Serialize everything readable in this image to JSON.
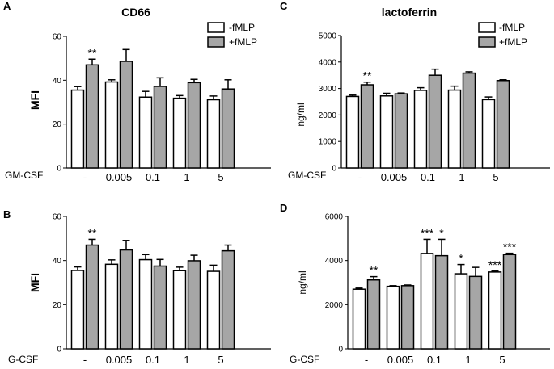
{
  "colors": {
    "neg": "#ffffff",
    "pos": "#a6a6a6",
    "stroke": "#000000"
  },
  "chart_data": [
    {
      "panel": "A",
      "type": "bar",
      "title": "CD66",
      "ylabel": "MFI",
      "factor_label": "GM-CSF",
      "categories": [
        "-",
        "0.005",
        "0.1",
        "1",
        "5"
      ],
      "ylim": [
        0,
        60
      ],
      "yticks": [
        0,
        20,
        40,
        60
      ],
      "legend": [
        "-fMLP",
        "+fMLP"
      ],
      "series": [
        {
          "name": "-fMLP",
          "values": [
            35.5,
            39.2,
            32.3,
            31.8,
            31.1
          ],
          "errors": [
            1.6,
            1.0,
            2.6,
            1.2,
            1.7
          ],
          "stars": [
            "",
            "",
            "",
            "",
            ""
          ]
        },
        {
          "name": "+fMLP",
          "values": [
            47.0,
            48.6,
            37.2,
            38.9,
            36.0
          ],
          "errors": [
            2.6,
            5.4,
            3.9,
            1.5,
            4.2
          ],
          "stars": [
            "**",
            "",
            "",
            "",
            ""
          ]
        }
      ]
    },
    {
      "panel": "C",
      "type": "bar",
      "title": "lactoferrin",
      "ylabel": "ng/ml",
      "factor_label": "GM-CSF",
      "categories": [
        "-",
        "0.005",
        "0.1",
        "1",
        "5"
      ],
      "ylim": [
        0,
        5000
      ],
      "yticks": [
        0,
        1000,
        2000,
        3000,
        4000,
        5000
      ],
      "legend": [
        "-fMLP",
        "+fMLP"
      ],
      "series": [
        {
          "name": "-fMLP",
          "values": [
            2700,
            2720,
            2930,
            2940,
            2580
          ],
          "errors": [
            50,
            100,
            100,
            150,
            100
          ],
          "stars": [
            "",
            "",
            "",
            "",
            ""
          ]
        },
        {
          "name": "+fMLP",
          "values": [
            3140,
            2800,
            3500,
            3580,
            3300
          ],
          "errors": [
            100,
            30,
            230,
            50,
            30
          ],
          "stars": [
            "**",
            "",
            "",
            "",
            ""
          ]
        }
      ]
    },
    {
      "panel": "B",
      "type": "bar",
      "title": "",
      "ylabel": "MFI",
      "factor_label": "G-CSF",
      "categories": [
        "-",
        "0.005",
        "0.1",
        "1",
        "5"
      ],
      "ylim": [
        0,
        60
      ],
      "yticks": [
        0,
        20,
        40,
        60
      ],
      "legend": [],
      "series": [
        {
          "name": "-fMLP",
          "values": [
            35.5,
            38.3,
            40.4,
            35.4,
            35.1
          ],
          "errors": [
            1.6,
            2.0,
            2.3,
            1.6,
            2.8
          ],
          "stars": [
            "",
            "",
            "",
            "",
            ""
          ]
        },
        {
          "name": "+fMLP",
          "values": [
            47.0,
            44.8,
            37.5,
            39.9,
            44.4
          ],
          "errors": [
            2.6,
            4.3,
            3.0,
            2.5,
            2.6
          ],
          "stars": [
            "**",
            "",
            "",
            "",
            ""
          ]
        }
      ]
    },
    {
      "panel": "D",
      "type": "bar",
      "title": "",
      "ylabel": "ng/ml",
      "factor_label": "G-CSF",
      "categories": [
        "-",
        "0.005",
        "0.1",
        "1",
        "5"
      ],
      "ylim": [
        0,
        6000
      ],
      "yticks": [
        0,
        2000,
        4000,
        6000
      ],
      "legend": [],
      "series": [
        {
          "name": "-fMLP",
          "values": [
            2700,
            2830,
            4320,
            3400,
            3480
          ],
          "errors": [
            50,
            30,
            640,
            420,
            40
          ],
          "stars": [
            "",
            "",
            "***",
            "*",
            "***"
          ]
        },
        {
          "name": "+fMLP",
          "values": [
            3120,
            2860,
            4220,
            3280,
            4270
          ],
          "errors": [
            150,
            30,
            740,
            410,
            60
          ],
          "stars": [
            "**",
            "",
            "*",
            "",
            "***"
          ]
        }
      ]
    }
  ]
}
